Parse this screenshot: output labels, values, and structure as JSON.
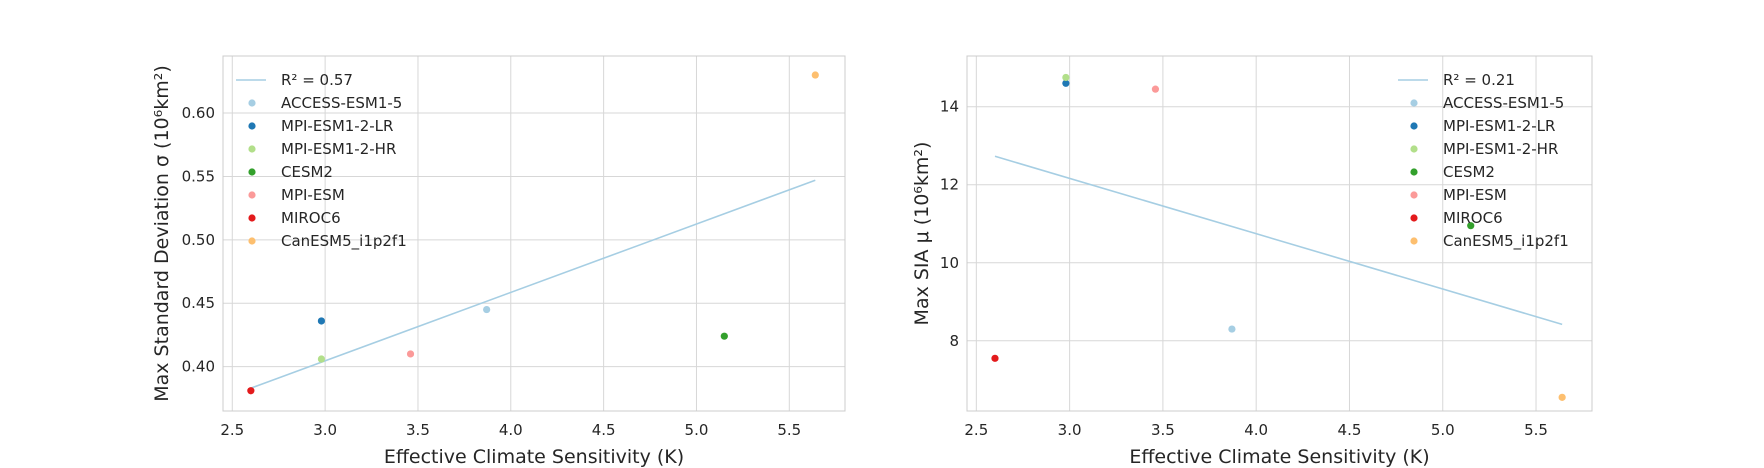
{
  "colors": {
    "fit_line": "#a6cee3",
    "models": [
      "#a6cee3",
      "#1f78b4",
      "#b2df8a",
      "#33a02c",
      "#fb9a99",
      "#e31a1c",
      "#fdbf6f"
    ]
  },
  "chart_data": [
    {
      "type": "scatter",
      "xlabel": "Effective Climate Sensitivity (K)",
      "ylabel": "Max Standard Deviation σ (10⁶km²)",
      "xlim": [
        2.45,
        5.8
      ],
      "ylim": [
        0.365,
        0.645
      ],
      "xticks": [
        "2.5",
        "3.0",
        "3.5",
        "4.0",
        "4.5",
        "5.0",
        "5.5"
      ],
      "yticks": [
        "0.40",
        "0.45",
        "0.50",
        "0.55",
        "0.60"
      ],
      "grid": true,
      "legend_position": "upper-left",
      "fit": {
        "label": "R² = 0.57",
        "x": [
          2.6,
          5.64
        ],
        "y": [
          0.383,
          0.547
        ]
      },
      "series": [
        {
          "name": "ACCESS-ESM1-5",
          "x": 3.87,
          "y": 0.445
        },
        {
          "name": "MPI-ESM1-2-LR",
          "x": 2.98,
          "y": 0.436
        },
        {
          "name": "MPI-ESM1-2-HR",
          "x": 2.98,
          "y": 0.406
        },
        {
          "name": "CESM2",
          "x": 5.15,
          "y": 0.424
        },
        {
          "name": "MPI-ESM",
          "x": 3.46,
          "y": 0.41
        },
        {
          "name": "MIROC6",
          "x": 2.6,
          "y": 0.381
        },
        {
          "name": "CanESM5_i1p2f1",
          "x": 5.64,
          "y": 0.63
        }
      ]
    },
    {
      "type": "scatter",
      "xlabel": "Effective Climate Sensitivity (K)",
      "ylabel": "Max SIA μ (10⁶km²)",
      "xlim": [
        2.45,
        5.8
      ],
      "ylim": [
        6.2,
        15.3
      ],
      "xticks": [
        "2.5",
        "3.0",
        "3.5",
        "4.0",
        "4.5",
        "5.0",
        "5.5"
      ],
      "yticks": [
        "8",
        "10",
        "12",
        "14"
      ],
      "grid": true,
      "legend_position": "upper-right",
      "fit": {
        "label": "R² = 0.21",
        "x": [
          2.6,
          5.64
        ],
        "y": [
          12.73,
          8.42
        ]
      },
      "series": [
        {
          "name": "ACCESS-ESM1-5",
          "x": 3.87,
          "y": 8.3
        },
        {
          "name": "MPI-ESM1-2-LR",
          "x": 2.98,
          "y": 14.6
        },
        {
          "name": "MPI-ESM1-2-HR",
          "x": 2.98,
          "y": 14.75
        },
        {
          "name": "CESM2",
          "x": 5.15,
          "y": 10.95
        },
        {
          "name": "MPI-ESM",
          "x": 3.46,
          "y": 14.45
        },
        {
          "name": "MIROC6",
          "x": 2.6,
          "y": 7.55
        },
        {
          "name": "CanESM5_i1p2f1",
          "x": 5.64,
          "y": 6.55
        }
      ]
    }
  ]
}
